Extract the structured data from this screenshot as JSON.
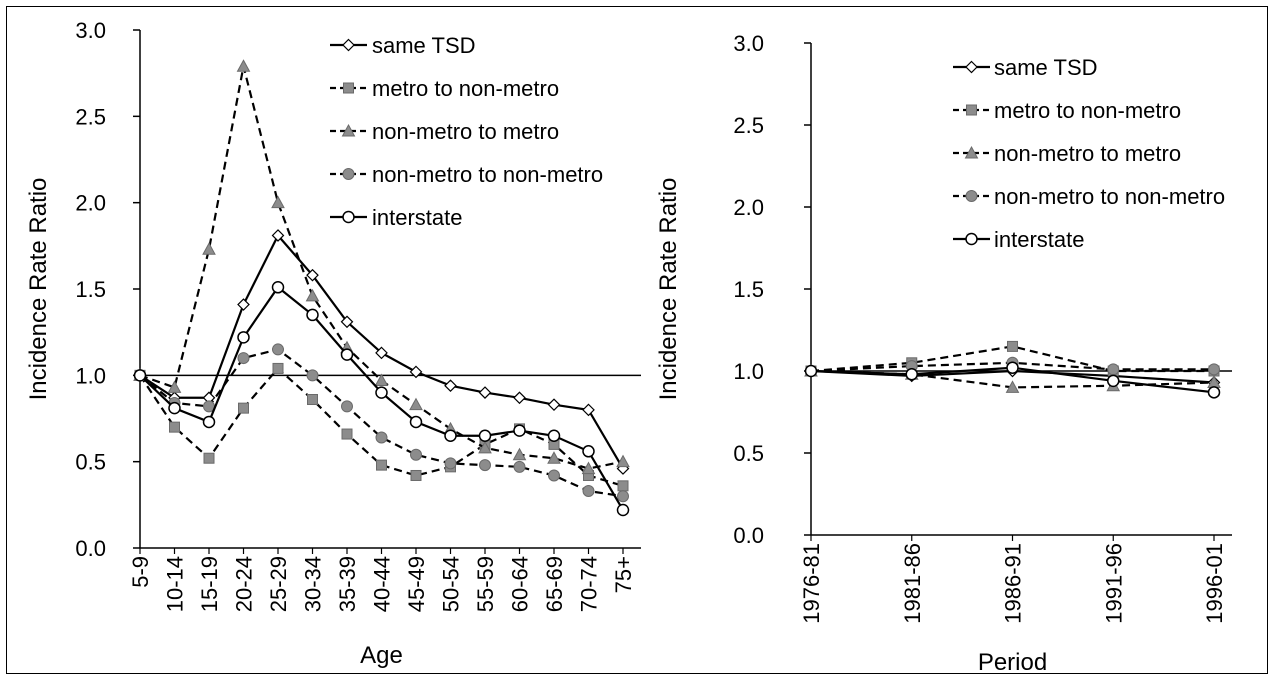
{
  "chart_data": [
    {
      "type": "line",
      "xlabel": "Age",
      "ylabel": "Incidence Rate Ratio",
      "ylim": [
        0,
        3
      ],
      "yticks": [
        "0.0",
        "0.5",
        "1.0",
        "1.5",
        "2.0",
        "2.5",
        "3.0"
      ],
      "reference_line": 1.0,
      "legend_position": "top-right",
      "categories": [
        "5-9",
        "10-14",
        "15-19",
        "20-24",
        "25-29",
        "30-34",
        "35-39",
        "40-44",
        "45-49",
        "50-54",
        "55-59",
        "60-64",
        "65-69",
        "70-74",
        "75+"
      ],
      "series": [
        {
          "name": "same TSD",
          "dash": "solid",
          "marker": "diamond",
          "values": [
            1.0,
            0.87,
            0.87,
            1.41,
            1.81,
            1.58,
            1.31,
            1.13,
            1.02,
            0.94,
            0.9,
            0.87,
            0.83,
            0.8,
            0.46
          ]
        },
        {
          "name": "metro to non-metro",
          "dash": "dashed",
          "marker": "square",
          "values": [
            1.0,
            0.7,
            0.52,
            0.81,
            1.04,
            0.86,
            0.66,
            0.48,
            0.42,
            0.47,
            0.6,
            0.69,
            0.6,
            0.42,
            0.36
          ]
        },
        {
          "name": "non-metro to metro",
          "dash": "dashed",
          "marker": "triangle",
          "values": [
            1.0,
            0.93,
            1.73,
            2.79,
            2.0,
            1.46,
            1.16,
            0.97,
            0.83,
            0.69,
            0.58,
            0.54,
            0.52,
            0.46,
            0.5
          ]
        },
        {
          "name": "non-metro to non-metro",
          "dash": "dashed",
          "marker": "circle-gray",
          "values": [
            1.0,
            0.84,
            0.82,
            1.1,
            1.15,
            1.0,
            0.82,
            0.64,
            0.54,
            0.49,
            0.48,
            0.47,
            0.42,
            0.33,
            0.3
          ]
        },
        {
          "name": "interstate",
          "dash": "solid",
          "marker": "circle-white",
          "values": [
            1.0,
            0.81,
            0.73,
            1.22,
            1.51,
            1.35,
            1.12,
            0.9,
            0.73,
            0.65,
            0.65,
            0.68,
            0.65,
            0.56,
            0.22
          ]
        }
      ]
    },
    {
      "type": "line",
      "xlabel": "Period",
      "ylabel": "Incidence Rate Ratio",
      "ylim": [
        0,
        3
      ],
      "yticks": [
        "0.0",
        "0.5",
        "1.0",
        "1.5",
        "2.0",
        "2.5",
        "3.0"
      ],
      "reference_line": 1.0,
      "legend_position": "top-right",
      "categories": [
        "1976-81",
        "1981-86",
        "1986-91",
        "1991-96",
        "1996-01"
      ],
      "series": [
        {
          "name": "same TSD",
          "dash": "solid",
          "marker": "diamond",
          "values": [
            1.0,
            0.97,
            1.0,
            0.97,
            0.93
          ]
        },
        {
          "name": "metro to non-metro",
          "dash": "dashed",
          "marker": "square",
          "values": [
            1.0,
            1.05,
            1.15,
            1.0,
            1.0
          ]
        },
        {
          "name": "non-metro to metro",
          "dash": "dashed",
          "marker": "triangle",
          "values": [
            1.0,
            0.98,
            0.9,
            0.91,
            0.93
          ]
        },
        {
          "name": "non-metro to non-metro",
          "dash": "dashed",
          "marker": "circle-gray",
          "values": [
            1.0,
            1.03,
            1.05,
            1.01,
            1.01
          ]
        },
        {
          "name": "interstate",
          "dash": "solid",
          "marker": "circle-white",
          "values": [
            1.0,
            0.98,
            1.02,
            0.94,
            0.87
          ]
        }
      ]
    }
  ]
}
